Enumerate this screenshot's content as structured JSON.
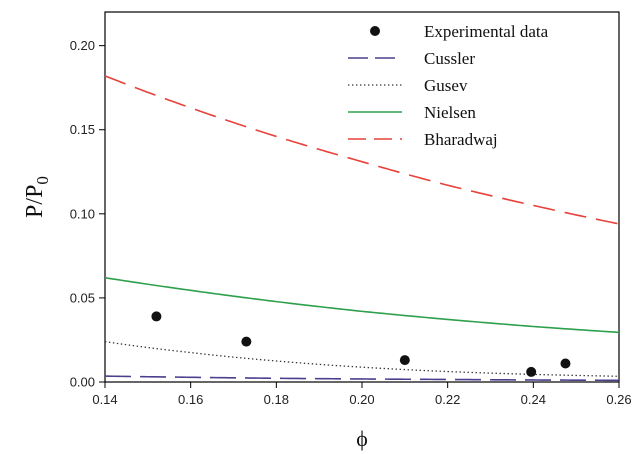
{
  "chart_data": {
    "type": "line",
    "xlabel": "ϕ",
    "ylabel_main": "P/P",
    "ylabel_sub": "0",
    "xlim": [
      0.14,
      0.26
    ],
    "ylim": [
      0,
      0.22
    ],
    "x_ticks": [
      0.14,
      0.16,
      0.18,
      0.2,
      0.22,
      0.24,
      0.26
    ],
    "x_tick_labels": [
      "0.14",
      "0.16",
      "0.18",
      "0.20",
      "0.22",
      "0.24",
      "0.26"
    ],
    "y_ticks": [
      0.0,
      0.05,
      0.1,
      0.15,
      0.2
    ],
    "y_tick_labels": [
      "0.00",
      "0.05",
      "0.10",
      "0.15",
      "0.20"
    ],
    "legend_position": "top-right",
    "scatter": {
      "name": "Experimental data",
      "color": "#111111",
      "points": [
        {
          "x": 0.152,
          "y": 0.039
        },
        {
          "x": 0.173,
          "y": 0.024
        },
        {
          "x": 0.21,
          "y": 0.013
        },
        {
          "x": 0.2395,
          "y": 0.006
        },
        {
          "x": 0.2475,
          "y": 0.011
        }
      ]
    },
    "series": [
      {
        "name": "Cussler",
        "color": "#4a3f8e",
        "style": "long-dash",
        "x": [
          0.14,
          0.16,
          0.18,
          0.2,
          0.22,
          0.24,
          0.26
        ],
        "values": [
          0.0035,
          0.0028,
          0.0022,
          0.0018,
          0.0015,
          0.0012,
          0.001
        ]
      },
      {
        "name": "Gusev",
        "color": "#333333",
        "style": "dotted",
        "x": [
          0.14,
          0.16,
          0.18,
          0.2,
          0.22,
          0.24,
          0.26
        ],
        "values": [
          0.024,
          0.0175,
          0.0125,
          0.0088,
          0.0062,
          0.0045,
          0.0034
        ]
      },
      {
        "name": "Nielsen",
        "color": "#2ea04c",
        "style": "solid",
        "x": [
          0.14,
          0.16,
          0.18,
          0.2,
          0.22,
          0.24,
          0.26
        ],
        "values": [
          0.062,
          0.0545,
          0.0478,
          0.042,
          0.0372,
          0.033,
          0.0295
        ]
      },
      {
        "name": "Bharadwaj",
        "color": "#e8413a",
        "style": "dash",
        "x": [
          0.14,
          0.16,
          0.18,
          0.2,
          0.22,
          0.24,
          0.26
        ],
        "values": [
          0.182,
          0.163,
          0.146,
          0.131,
          0.117,
          0.105,
          0.094
        ]
      }
    ]
  }
}
